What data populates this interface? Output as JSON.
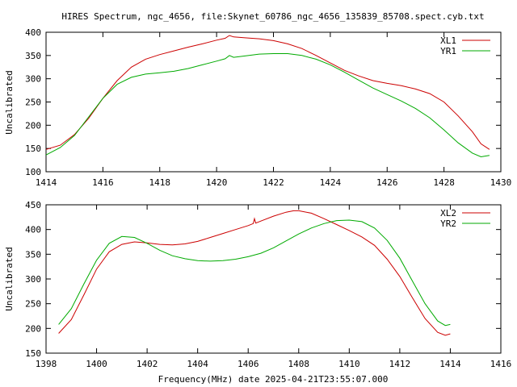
{
  "chart_data": [
    {
      "type": "line",
      "title": "HIRES Spectrum, ngc_4656, file:Skynet_60786_ngc_4656_135839_85708.spect.cyb.txt",
      "xlabel": "",
      "ylabel": "Uncalibrated",
      "xlim": [
        1414,
        1430
      ],
      "ylim": [
        100,
        400
      ],
      "xticks": [
        1414,
        1416,
        1418,
        1420,
        1422,
        1424,
        1426,
        1428,
        1430
      ],
      "yticks": [
        100,
        150,
        200,
        250,
        300,
        350,
        400
      ],
      "legend_position": "top-right",
      "grid": false,
      "series": [
        {
          "name": "XL1",
          "color": "#cc0000",
          "points": [
            [
              1414.0,
              148
            ],
            [
              1414.5,
              157
            ],
            [
              1415.0,
              180
            ],
            [
              1415.5,
              215
            ],
            [
              1416.0,
              258
            ],
            [
              1416.5,
              296
            ],
            [
              1417.0,
              325
            ],
            [
              1417.5,
              342
            ],
            [
              1418.0,
              352
            ],
            [
              1418.5,
              360
            ],
            [
              1419.0,
              368
            ],
            [
              1419.5,
              375
            ],
            [
              1420.0,
              383
            ],
            [
              1420.3,
              387
            ],
            [
              1420.45,
              393
            ],
            [
              1420.6,
              390
            ],
            [
              1421.0,
              388
            ],
            [
              1421.5,
              386
            ],
            [
              1422.0,
              382
            ],
            [
              1422.5,
              375
            ],
            [
              1423.0,
              365
            ],
            [
              1423.5,
              350
            ],
            [
              1424.0,
              334
            ],
            [
              1424.5,
              318
            ],
            [
              1425.0,
              306
            ],
            [
              1425.5,
              296
            ],
            [
              1426.0,
              290
            ],
            [
              1426.5,
              285
            ],
            [
              1427.0,
              278
            ],
            [
              1427.5,
              268
            ],
            [
              1428.0,
              250
            ],
            [
              1428.5,
              220
            ],
            [
              1429.0,
              186
            ],
            [
              1429.3,
              160
            ],
            [
              1429.6,
              148
            ]
          ]
        },
        {
          "name": "YR1",
          "color": "#00aa00",
          "points": [
            [
              1414.0,
              136
            ],
            [
              1414.5,
              152
            ],
            [
              1415.0,
              178
            ],
            [
              1415.5,
              218
            ],
            [
              1416.0,
              258
            ],
            [
              1416.5,
              288
            ],
            [
              1417.0,
              303
            ],
            [
              1417.5,
              310
            ],
            [
              1418.0,
              313
            ],
            [
              1418.5,
              316
            ],
            [
              1419.0,
              322
            ],
            [
              1419.5,
              330
            ],
            [
              1420.0,
              338
            ],
            [
              1420.3,
              343
            ],
            [
              1420.45,
              350
            ],
            [
              1420.6,
              346
            ],
            [
              1421.0,
              349
            ],
            [
              1421.5,
              353
            ],
            [
              1422.0,
              354
            ],
            [
              1422.5,
              354
            ],
            [
              1423.0,
              350
            ],
            [
              1423.5,
              342
            ],
            [
              1424.0,
              330
            ],
            [
              1424.5,
              314
            ],
            [
              1425.0,
              297
            ],
            [
              1425.5,
              280
            ],
            [
              1426.0,
              266
            ],
            [
              1426.5,
              252
            ],
            [
              1427.0,
              236
            ],
            [
              1427.5,
              216
            ],
            [
              1428.0,
              190
            ],
            [
              1428.5,
              162
            ],
            [
              1429.0,
              140
            ],
            [
              1429.3,
              132
            ],
            [
              1429.6,
              135
            ]
          ]
        }
      ]
    },
    {
      "type": "line",
      "title": "",
      "xlabel": "Frequency(MHz) date 2025-04-21T23:55:07.000",
      "ylabel": "Uncalibrated",
      "xlim": [
        1398,
        1416
      ],
      "ylim": [
        150,
        450
      ],
      "xticks": [
        1398,
        1400,
        1402,
        1404,
        1406,
        1408,
        1410,
        1412,
        1414,
        1416
      ],
      "yticks": [
        150,
        200,
        250,
        300,
        350,
        400,
        450
      ],
      "legend_position": "top-right",
      "grid": false,
      "series": [
        {
          "name": "XL2",
          "color": "#cc0000",
          "points": [
            [
              1398.5,
              190
            ],
            [
              1399.0,
              218
            ],
            [
              1399.5,
              268
            ],
            [
              1400.0,
              320
            ],
            [
              1400.5,
              355
            ],
            [
              1401.0,
              370
            ],
            [
              1401.5,
              375
            ],
            [
              1402.0,
              373
            ],
            [
              1402.5,
              370
            ],
            [
              1403.0,
              369
            ],
            [
              1403.5,
              371
            ],
            [
              1404.0,
              376
            ],
            [
              1404.5,
              384
            ],
            [
              1405.0,
              392
            ],
            [
              1405.5,
              400
            ],
            [
              1406.0,
              408
            ],
            [
              1406.2,
              412
            ],
            [
              1406.25,
              422
            ],
            [
              1406.3,
              413
            ],
            [
              1406.5,
              417
            ],
            [
              1407.0,
              427
            ],
            [
              1407.5,
              435
            ],
            [
              1407.8,
              438
            ],
            [
              1408.0,
              438
            ],
            [
              1408.5,
              433
            ],
            [
              1409.0,
              422
            ],
            [
              1409.5,
              410
            ],
            [
              1410.0,
              398
            ],
            [
              1410.5,
              385
            ],
            [
              1411.0,
              368
            ],
            [
              1411.5,
              340
            ],
            [
              1412.0,
              305
            ],
            [
              1412.5,
              262
            ],
            [
              1413.0,
              220
            ],
            [
              1413.5,
              192
            ],
            [
              1413.8,
              186
            ],
            [
              1414.0,
              189
            ]
          ]
        },
        {
          "name": "YR2",
          "color": "#00aa00",
          "points": [
            [
              1398.5,
              208
            ],
            [
              1399.0,
              240
            ],
            [
              1399.5,
              290
            ],
            [
              1400.0,
              338
            ],
            [
              1400.5,
              372
            ],
            [
              1401.0,
              386
            ],
            [
              1401.5,
              384
            ],
            [
              1402.0,
              372
            ],
            [
              1402.5,
              358
            ],
            [
              1403.0,
              347
            ],
            [
              1403.5,
              341
            ],
            [
              1404.0,
              337
            ],
            [
              1404.5,
              336
            ],
            [
              1405.0,
              337
            ],
            [
              1405.5,
              340
            ],
            [
              1406.0,
              345
            ],
            [
              1406.5,
              352
            ],
            [
              1407.0,
              363
            ],
            [
              1407.5,
              377
            ],
            [
              1408.0,
              391
            ],
            [
              1408.5,
              403
            ],
            [
              1409.0,
              412
            ],
            [
              1409.5,
              418
            ],
            [
              1410.0,
              419
            ],
            [
              1410.5,
              416
            ],
            [
              1411.0,
              403
            ],
            [
              1411.5,
              378
            ],
            [
              1412.0,
              342
            ],
            [
              1412.5,
              296
            ],
            [
              1413.0,
              250
            ],
            [
              1413.5,
              215
            ],
            [
              1413.8,
              206
            ],
            [
              1414.0,
              208
            ]
          ]
        }
      ]
    }
  ]
}
